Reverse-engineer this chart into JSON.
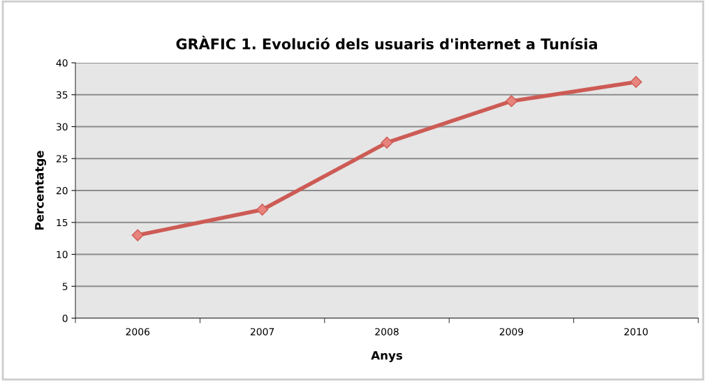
{
  "chart_data": {
    "type": "line",
    "title": "GRÀFIC 1. Evolució dels usuaris d'internet a Tunísia",
    "xlabel": "Anys",
    "ylabel": "Percentatge",
    "categories": [
      "2006",
      "2007",
      "2008",
      "2009",
      "2010"
    ],
    "series": [
      {
        "color": "#cd5b55",
        "values": [
          13,
          17,
          27.5,
          34,
          37
        ]
      }
    ],
    "ylim": [
      0,
      40
    ],
    "yticks": [
      0,
      5,
      10,
      15,
      20,
      25,
      30,
      35,
      40
    ],
    "grid": "y",
    "marker": "diamond",
    "line_style": "solid"
  }
}
